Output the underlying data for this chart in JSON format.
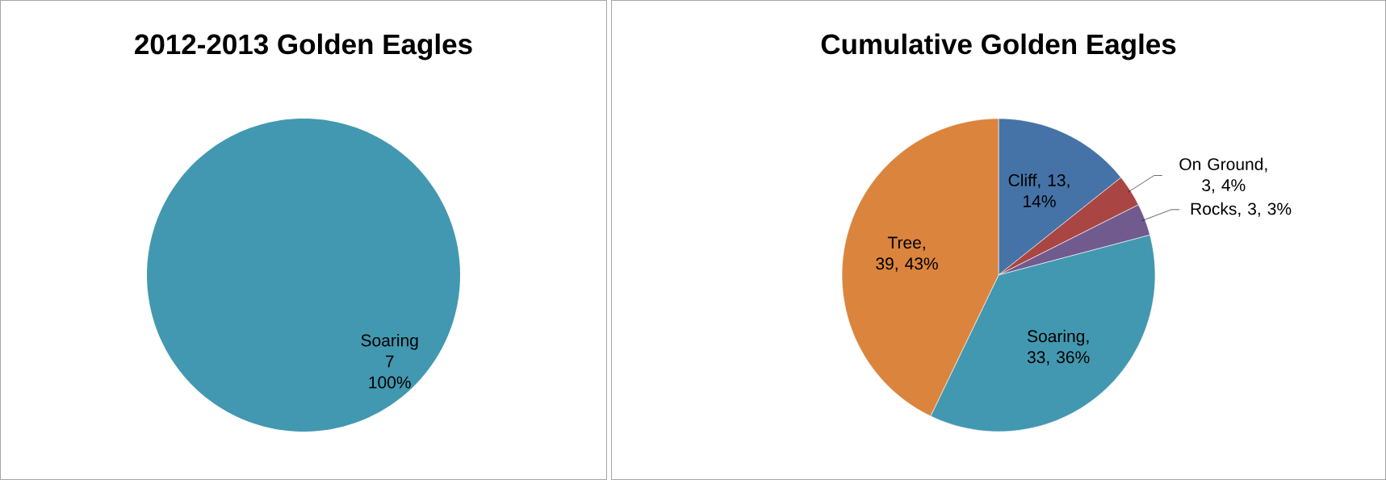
{
  "chart_data": [
    {
      "type": "pie",
      "title": "2012-2013 Golden Eagles",
      "categories": [
        "Soaring"
      ],
      "values": [
        7
      ],
      "colors": [
        "#4298b0"
      ],
      "data_labels": true,
      "annotations": [
        "100%"
      ]
    },
    {
      "type": "pie",
      "title": "Cumulative Golden Eagles",
      "categories": [
        "Cliff",
        "On Ground",
        "Rocks",
        "Soaring",
        "Tree"
      ],
      "values": [
        13,
        3,
        3,
        33,
        39
      ],
      "colors": [
        "#4573a7",
        "#a94643",
        "#715a8e",
        "#4298b0",
        "#db843d"
      ],
      "value_labels": [
        ", 13, 14%",
        ", 3, 4%",
        ", 3, 3%",
        ", 33, 36%",
        ", 39, 43%"
      ]
    }
  ]
}
